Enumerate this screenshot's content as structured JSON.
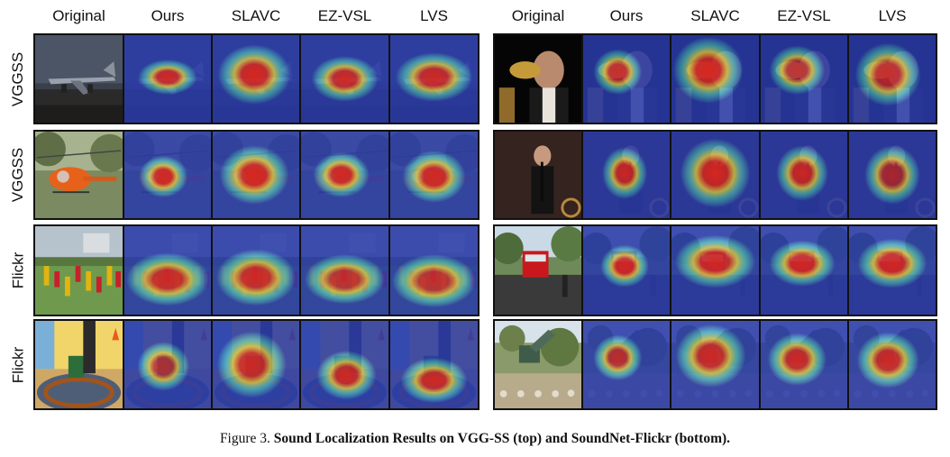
{
  "column_headers": [
    "Original",
    "Ours",
    "SLAVC",
    "EZ-VSL",
    "LVS"
  ],
  "row_labels": [
    "VGGSS",
    "VGGSS",
    "Flickr",
    "Flickr"
  ],
  "examples": {
    "left": [
      "airplane",
      "helicopter",
      "football-players",
      "child-train"
    ],
    "right": [
      "trumpet-player",
      "clarinet-player",
      "fire-truck",
      "excavator"
    ]
  },
  "caption": {
    "prefix": "Figure 3.",
    "text": "Sound Localization Results on VGG-SS (top) and SoundNet-Flickr (bottom)."
  },
  "colors": {
    "heatmap_cold": "#2a3ba8",
    "heatmap_mid": "#4fd1c5",
    "heatmap_warm": "#e8d23a",
    "heatmap_hot": "#d7261e"
  }
}
